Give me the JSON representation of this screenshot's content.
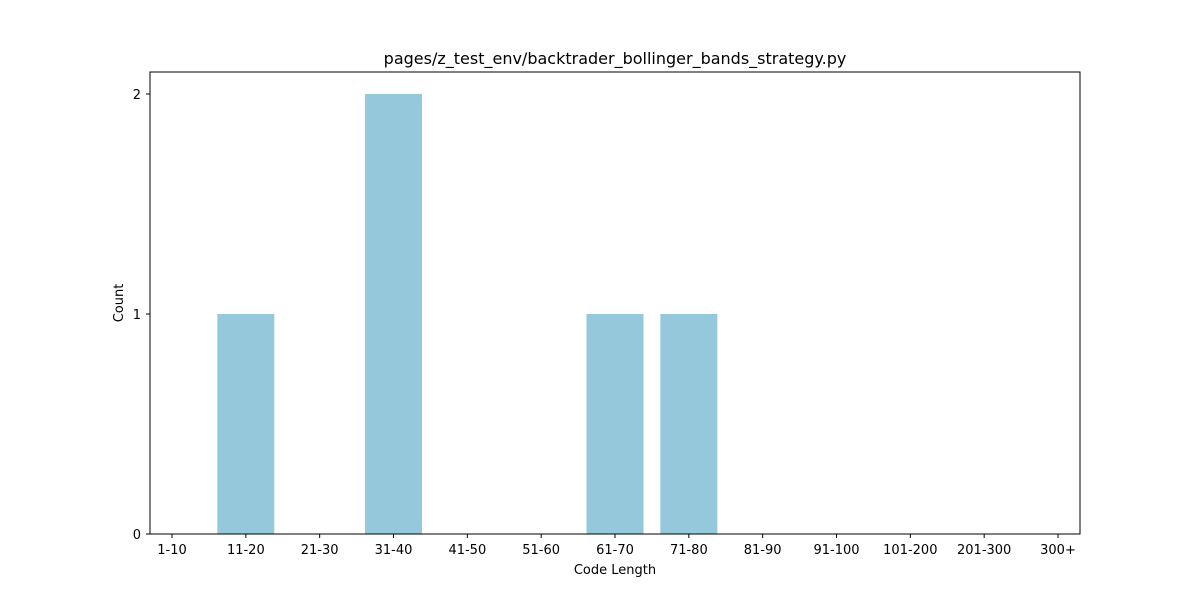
{
  "chart_data": {
    "type": "bar",
    "title": "pages/z_test_env/backtrader_bollinger_bands_strategy.py",
    "xlabel": "Code Length",
    "ylabel": "Count",
    "categories": [
      "1-10",
      "11-20",
      "21-30",
      "31-40",
      "41-50",
      "51-60",
      "61-70",
      "71-80",
      "81-90",
      "91-100",
      "101-200",
      "201-300",
      "300+"
    ],
    "values": [
      0,
      1,
      0,
      2,
      0,
      0,
      1,
      1,
      0,
      0,
      0,
      0,
      0
    ],
    "yticks": [
      0,
      1,
      2
    ],
    "ylim": [
      0,
      2.1
    ],
    "grid": false,
    "bar_color": "#96c8dc"
  }
}
